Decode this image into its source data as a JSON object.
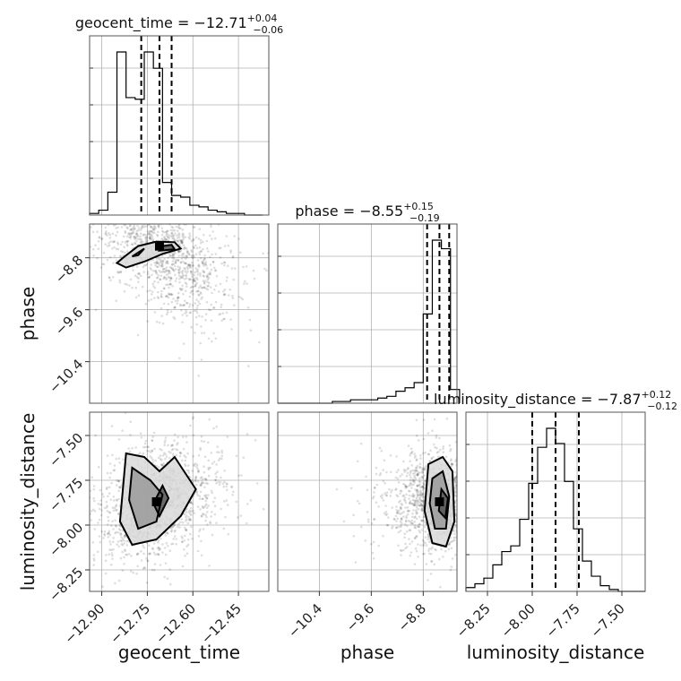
{
  "chart_data": {
    "type": "scatter",
    "parameters": [
      {
        "name": "geocent_time",
        "axis_label": "geocent_time",
        "title": {
          "lead": "geocent_time = ",
          "median": "−12.71",
          "plus": "+0.04",
          "minus": "−0.06"
        },
        "range": [
          -12.94,
          -12.35
        ],
        "ticks": [
          -12.9,
          -12.75,
          -12.6,
          -12.45
        ],
        "tick_labels": [
          "−12.90",
          "−12.75",
          "−12.60",
          "−12.45"
        ],
        "quantiles": [
          -12.77,
          -12.71,
          -12.67
        ],
        "hist": {
          "edges": [
            -12.94,
            -12.91,
            -12.88,
            -12.85,
            -12.82,
            -12.79,
            -12.76,
            -12.73,
            -12.7,
            -12.67,
            -12.64,
            -12.61,
            -12.58,
            -12.55,
            -12.52,
            -12.49,
            -12.46,
            -12.43,
            -12.4,
            -12.37
          ],
          "counts": [
            1,
            3,
            14,
            100,
            72,
            71,
            100,
            90,
            20,
            12,
            11,
            6,
            5,
            3,
            2,
            1,
            1,
            0,
            0
          ]
        }
      },
      {
        "name": "phase",
        "axis_label": "phase",
        "title": {
          "lead": "phase = ",
          "median": "−8.55",
          "plus": "+0.15",
          "minus": "−0.19"
        },
        "range": [
          -11.04,
          -8.28
        ],
        "ticks": [
          -10.4,
          -9.6,
          -8.8
        ],
        "tick_labels": [
          "−10.4",
          "−9.6",
          "−8.8"
        ],
        "quantiles": [
          -8.74,
          -8.55,
          -8.4
        ],
        "hist": {
          "edges": [
            -11.04,
            -10.9,
            -10.76,
            -10.62,
            -10.48,
            -10.34,
            -10.2,
            -10.06,
            -9.92,
            -9.78,
            -9.64,
            -9.5,
            -9.36,
            -9.22,
            -9.08,
            -8.94,
            -8.8,
            -8.66,
            -8.52,
            -8.38,
            -8.24
          ],
          "counts": [
            0,
            0,
            0,
            0,
            0,
            0,
            1,
            1,
            2,
            2,
            2,
            3,
            4,
            7,
            9,
            12,
            52,
            95,
            90,
            8
          ]
        }
      },
      {
        "name": "luminosity_distance",
        "axis_label": "luminosity_distance",
        "title": {
          "lead": "luminosity_distance = ",
          "median": "−7.87",
          "plus": "+0.12",
          "minus": "−0.12"
        },
        "range": [
          -8.37,
          -7.37
        ],
        "ticks": [
          -8.25,
          -8.0,
          -7.75,
          -7.5
        ],
        "tick_labels": [
          "−8.25",
          "−8.00",
          "−7.75",
          "−7.50"
        ],
        "quantiles": [
          -8.0,
          -7.87,
          -7.74
        ],
        "hist": {
          "edges": [
            -8.37,
            -8.32,
            -8.27,
            -8.22,
            -8.17,
            -8.12,
            -8.07,
            -8.02,
            -7.97,
            -7.92,
            -7.87,
            -7.82,
            -7.77,
            -7.72,
            -7.67,
            -7.62,
            -7.57,
            -7.52,
            -7.47,
            -7.42,
            -7.37
          ],
          "counts": [
            2,
            4,
            7,
            14,
            21,
            24,
            38,
            57,
            76,
            86,
            78,
            58,
            33,
            16,
            8,
            3,
            1,
            0,
            0,
            0
          ]
        }
      }
    ],
    "pairs": [
      {
        "x": "geocent_time",
        "y": "phase",
        "center": [
          -12.71,
          -8.62
        ],
        "spread": [
          0.1,
          0.55
        ],
        "correlation": -0.55,
        "contour_levels": [
          [
            [
              -12.83,
              -8.8
            ],
            [
              -12.78,
              -8.62
            ],
            [
              -12.72,
              -8.55
            ],
            [
              -12.66,
              -8.56
            ],
            [
              -12.64,
              -8.66
            ],
            [
              -12.7,
              -8.74
            ],
            [
              -12.76,
              -8.86
            ],
            [
              -12.82,
              -8.95
            ],
            [
              -12.85,
              -8.88
            ]
          ],
          [
            [
              -12.8,
              -8.78
            ],
            [
              -12.76,
              -8.66
            ],
            [
              -12.78,
              -8.76
            ]
          ],
          [
            [
              -12.7,
              -8.62
            ],
            [
              -12.67,
              -8.6
            ],
            [
              -12.66,
              -8.67
            ],
            [
              -12.71,
              -8.69
            ]
          ]
        ]
      },
      {
        "x": "geocent_time",
        "y": "luminosity_distance",
        "center": [
          -12.72,
          -7.87
        ],
        "spread": [
          0.09,
          0.17
        ],
        "correlation": 0.25,
        "contour_levels": [
          [
            [
              -12.82,
              -7.6
            ],
            [
              -12.76,
              -7.62
            ],
            [
              -12.71,
              -7.7
            ],
            [
              -12.66,
              -7.62
            ],
            [
              -12.59,
              -7.8
            ],
            [
              -12.64,
              -7.95
            ],
            [
              -12.72,
              -8.08
            ],
            [
              -12.8,
              -8.11
            ],
            [
              -12.84,
              -7.98
            ]
          ],
          [
            [
              -12.8,
              -7.68
            ],
            [
              -12.74,
              -7.75
            ],
            [
              -12.7,
              -7.83
            ],
            [
              -12.72,
              -7.98
            ],
            [
              -12.78,
              -8.02
            ],
            [
              -12.81,
              -7.86
            ]
          ],
          [
            [
              -12.7,
              -7.78
            ],
            [
              -12.68,
              -7.85
            ],
            [
              -12.71,
              -7.95
            ],
            [
              -12.73,
              -7.88
            ]
          ]
        ]
      },
      {
        "x": "phase",
        "y": "luminosity_distance",
        "center": [
          -8.55,
          -7.87
        ],
        "spread": [
          0.35,
          0.14
        ],
        "correlation": 0.0,
        "contour_levels": [
          [
            [
              -8.72,
              -7.66
            ],
            [
              -8.5,
              -7.62
            ],
            [
              -8.35,
              -7.7
            ],
            [
              -8.32,
              -7.98
            ],
            [
              -8.45,
              -8.12
            ],
            [
              -8.66,
              -8.1
            ],
            [
              -8.78,
              -7.92
            ]
          ],
          [
            [
              -8.66,
              -7.74
            ],
            [
              -8.5,
              -7.7
            ],
            [
              -8.4,
              -7.84
            ],
            [
              -8.45,
              -8.02
            ],
            [
              -8.62,
              -8.02
            ],
            [
              -8.7,
              -7.88
            ]
          ],
          [
            [
              -8.52,
              -7.8
            ],
            [
              -8.42,
              -7.85
            ],
            [
              -8.46,
              -7.96
            ],
            [
              -8.56,
              -7.92
            ]
          ]
        ]
      }
    ]
  }
}
